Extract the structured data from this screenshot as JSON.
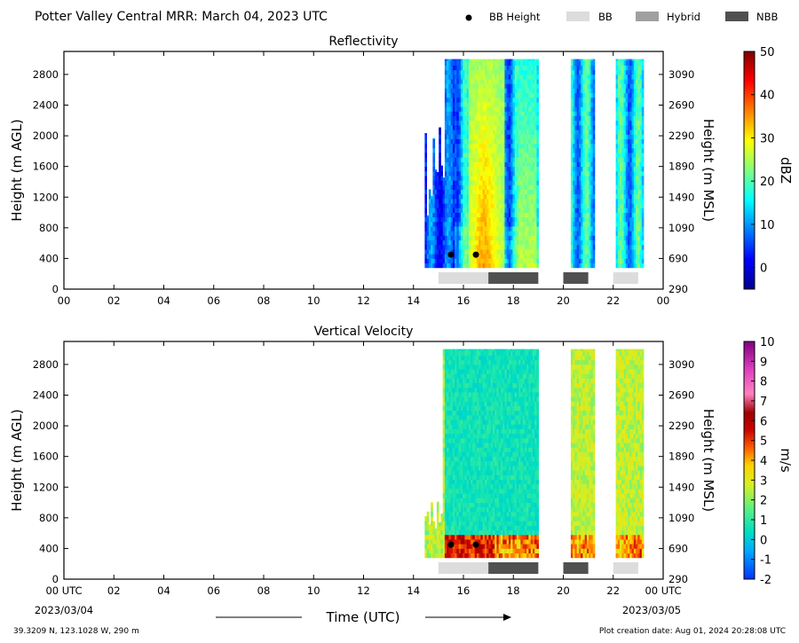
{
  "header": {
    "title": "Potter Valley Central MRR:  March 04, 2023 UTC",
    "legend": [
      {
        "label": "BB Height",
        "marker": "dot",
        "color": "#000000"
      },
      {
        "label": "BB",
        "marker": "box",
        "color": "#dcdcdc"
      },
      {
        "label": "Hybrid",
        "marker": "box",
        "color": "#a0a0a0"
      },
      {
        "label": "NBB",
        "marker": "box",
        "color": "#505050"
      }
    ]
  },
  "footer": {
    "xlabel": "Time (UTC)",
    "start_date": "2023/03/04",
    "end_date": "2023/03/05",
    "location": "39.3209 N, 123.1028 W, 290 m",
    "creation": "Plot creation date: Aug 01, 2024 20:28:08 UTC"
  },
  "chart_data": [
    {
      "type": "heatmap",
      "title": "Reflectivity",
      "ylabel": "Height (m AGL)",
      "ylabel_right": "Height (m MSL)",
      "xlim": [
        0,
        24
      ],
      "ylim": [
        0,
        3100
      ],
      "xticks": [
        "00 UTC",
        "02",
        "04",
        "06",
        "08",
        "10",
        "12",
        "14",
        "16",
        "18",
        "20",
        "22",
        "00 UTC"
      ],
      "yticks": [
        0,
        400,
        800,
        1200,
        1600,
        2000,
        2400,
        2800
      ],
      "yticks_right": [
        290,
        690,
        1090,
        1490,
        1890,
        2290,
        2690,
        3090
      ],
      "colorbar": {
        "label": "dBZ",
        "min": -5,
        "max": 50,
        "ticks": [
          0,
          10,
          20,
          30,
          40,
          50
        ]
      },
      "data_periods_hours": [
        [
          14.45,
          19.0
        ],
        [
          20.3,
          21.2
        ],
        [
          22.1,
          23.2
        ]
      ],
      "bb_height": [
        {
          "x": 15.5,
          "y": 450
        },
        {
          "x": 16.5,
          "y": 450
        }
      ],
      "bright_band_type": [
        {
          "start": 15.0,
          "end": 17.0,
          "type": "BB"
        },
        {
          "start": 17.0,
          "end": 19.0,
          "type": "NBB"
        },
        {
          "start": 20.0,
          "end": 21.0,
          "type": "NBB"
        },
        {
          "start": 22.0,
          "end": 23.0,
          "type": "BB"
        }
      ]
    },
    {
      "type": "heatmap",
      "title": "Vertical Velocity",
      "ylabel": "Height (m AGL)",
      "ylabel_right": "Height (m MSL)",
      "xlim": [
        0,
        24
      ],
      "ylim": [
        0,
        3100
      ],
      "xticks": [
        "00 UTC",
        "02",
        "04",
        "06",
        "08",
        "10",
        "12",
        "14",
        "16",
        "18",
        "20",
        "22",
        "00 UTC"
      ],
      "yticks": [
        0,
        400,
        800,
        1200,
        1600,
        2000,
        2400,
        2800
      ],
      "yticks_right": [
        290,
        690,
        1090,
        1490,
        1890,
        2290,
        2690,
        3090
      ],
      "colorbar": {
        "label": "m/s",
        "min": -2,
        "max": 10,
        "ticks": [
          -2,
          -1,
          0,
          1,
          2,
          3,
          4,
          5,
          6,
          7,
          8,
          9,
          10
        ]
      },
      "data_periods_hours": [
        [
          14.45,
          19.0
        ],
        [
          20.3,
          21.2
        ],
        [
          22.1,
          23.2
        ]
      ],
      "bb_height": [
        {
          "x": 15.5,
          "y": 450
        },
        {
          "x": 16.5,
          "y": 450
        }
      ],
      "bright_band_type": [
        {
          "start": 15.0,
          "end": 17.0,
          "type": "BB"
        },
        {
          "start": 17.0,
          "end": 19.0,
          "type": "NBB"
        },
        {
          "start": 20.0,
          "end": 21.0,
          "type": "NBB"
        },
        {
          "start": 22.0,
          "end": 23.0,
          "type": "BB"
        }
      ]
    }
  ]
}
